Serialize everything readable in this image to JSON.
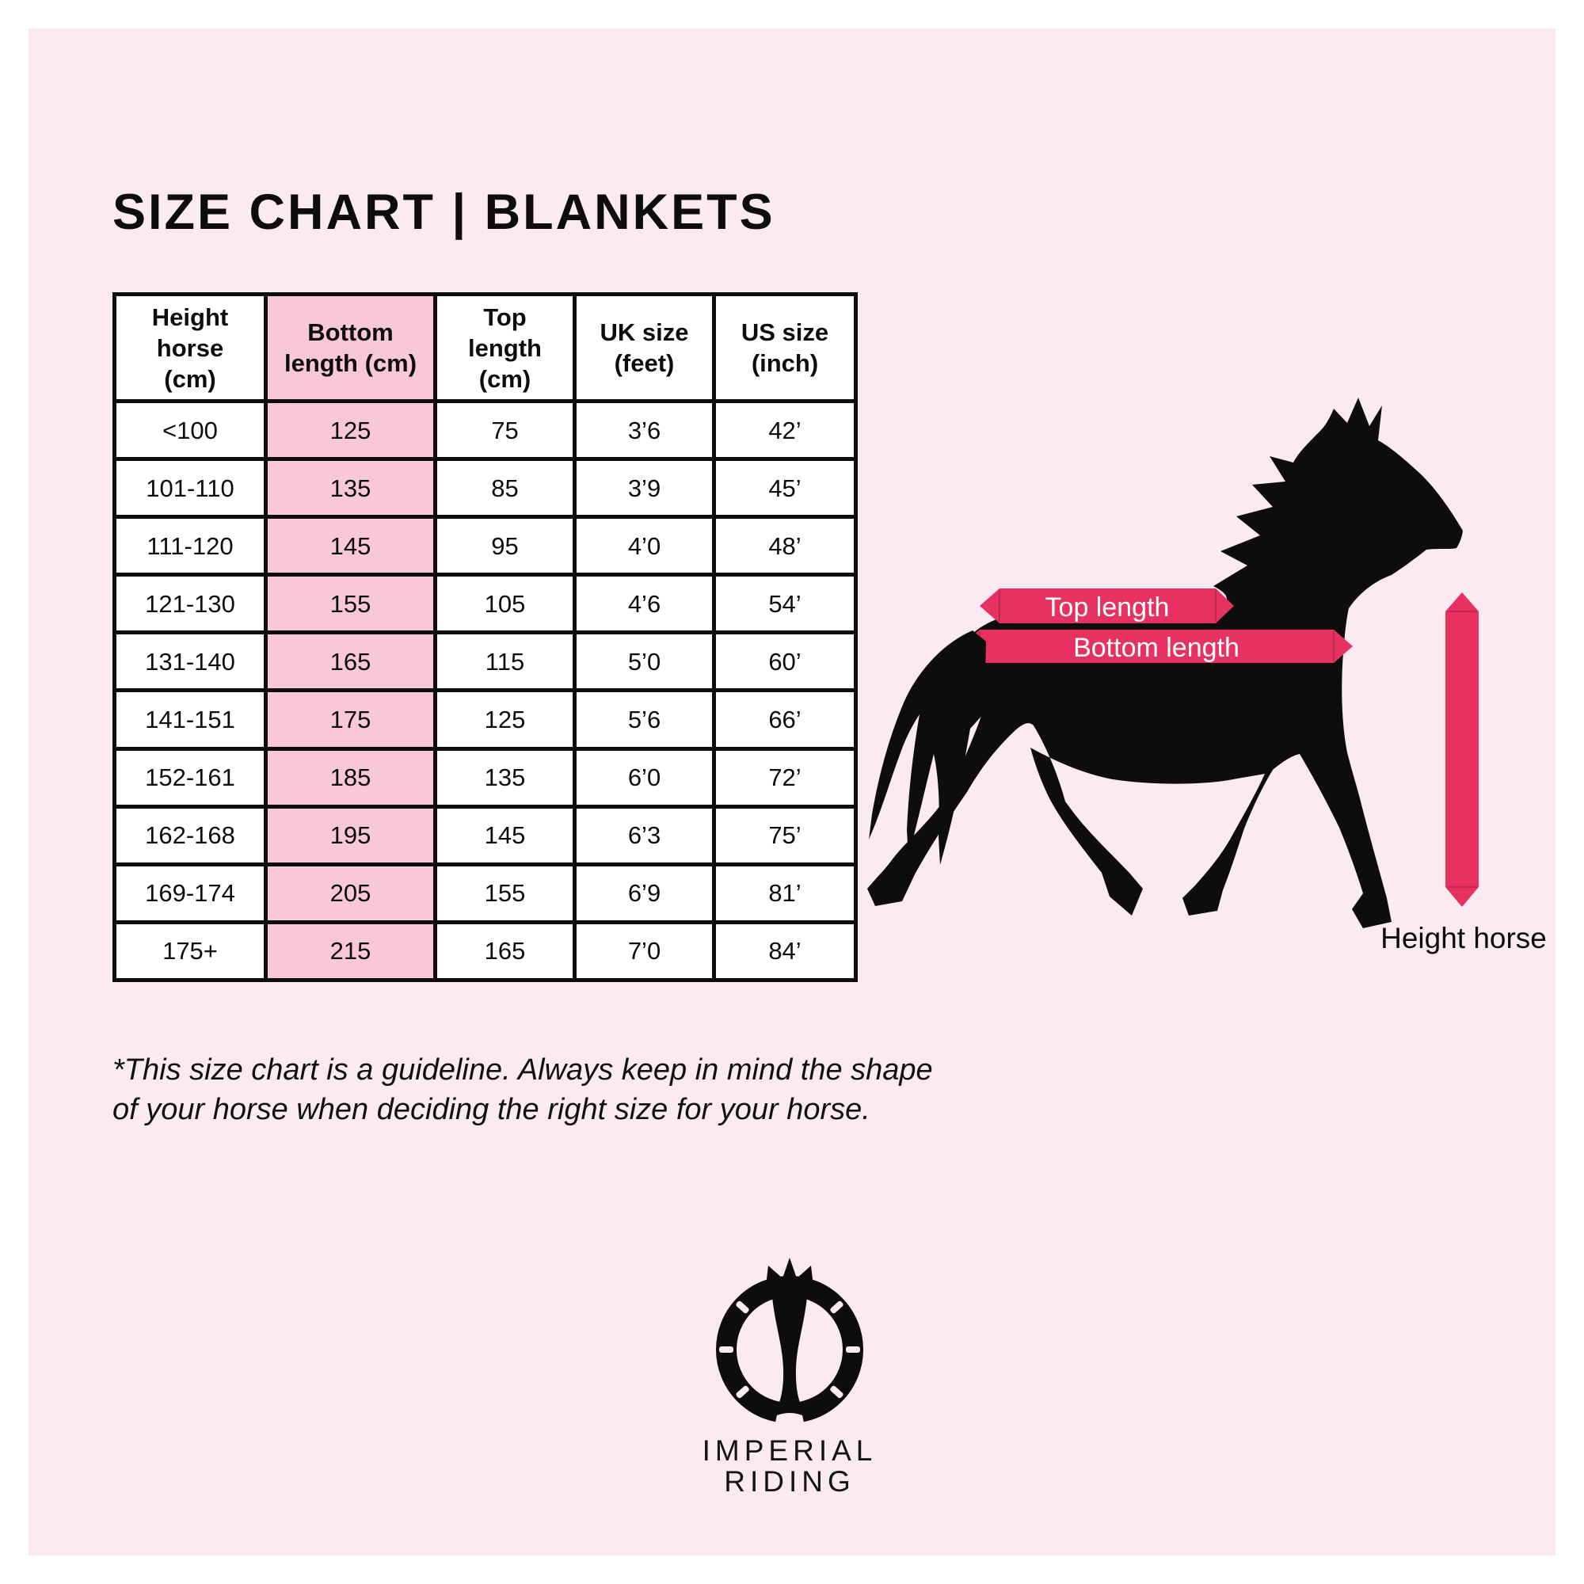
{
  "page": {
    "title": "SIZE CHART | BLANKETS"
  },
  "table": {
    "header_lines": [
      [
        "Height",
        "horse",
        "(cm)"
      ],
      [
        "Bottom",
        "length (cm)"
      ],
      [
        "Top",
        "length",
        "(cm)"
      ],
      [
        "UK size",
        "(feet)"
      ],
      [
        "US size",
        "(inch)"
      ]
    ],
    "rows": [
      [
        "<100",
        "125",
        "75",
        "3’6",
        "42’"
      ],
      [
        "101-110",
        "135",
        "85",
        "3’9",
        "45’"
      ],
      [
        "111-120",
        "145",
        "95",
        "4’0",
        "48’"
      ],
      [
        "121-130",
        "155",
        "105",
        "4’6",
        "54’"
      ],
      [
        "131-140",
        "165",
        "115",
        "5’0",
        "60’"
      ],
      [
        "141-151",
        "175",
        "125",
        "5’6",
        "66’"
      ],
      [
        "152-161",
        "185",
        "135",
        "6’0",
        "72’"
      ],
      [
        "162-168",
        "195",
        "145",
        "6’3",
        "75’"
      ],
      [
        "169-174",
        "205",
        "155",
        "6’9",
        "81’"
      ],
      [
        "175+",
        "215",
        "165",
        "7’0",
        "84’"
      ]
    ]
  },
  "diagram": {
    "top_length_label": "Top length",
    "bottom_length_label": "Bottom length",
    "height_label": "Height horse"
  },
  "footnote": {
    "line1": "*This size chart is a guideline. Always keep in mind the shape",
    "line2": "of your horse when deciding the right size for your horse."
  },
  "logo": {
    "line1": "IMPERIAL",
    "line2": "RIDING"
  },
  "colors": {
    "background_pink": "#fbeaf0",
    "highlight_column_pink": "#f8c8d8",
    "accent_pink": "#e73160",
    "ink_black": "#0d0d0d"
  }
}
